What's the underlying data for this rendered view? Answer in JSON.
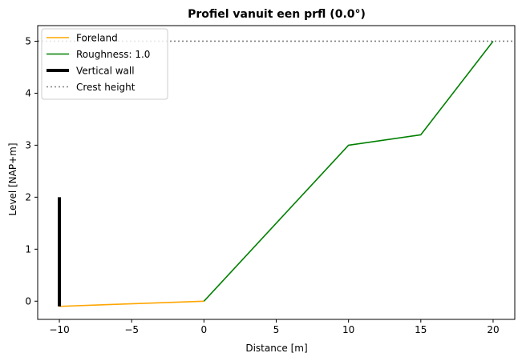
{
  "chart_data": {
    "type": "line",
    "title": "Profiel vanuit een prfl (0.0°)",
    "xlabel": "Distance [m]",
    "ylabel": "Level [NAP+m]",
    "xlim": [
      -11.5,
      21.5
    ],
    "ylim": [
      -0.35,
      5.3
    ],
    "xticks": [
      -10,
      -5,
      0,
      5,
      10,
      15,
      20
    ],
    "yticks": [
      0,
      1,
      2,
      3,
      4,
      5
    ],
    "xtick_labels": [
      "−10",
      "−5",
      "0",
      "5",
      "10",
      "15",
      "20"
    ],
    "ytick_labels": [
      "0",
      "1",
      "2",
      "3",
      "4",
      "5"
    ],
    "grid": false,
    "legend_position": "top-left",
    "series": [
      {
        "name": "Foreland",
        "style": "solid",
        "color": "#FFA500",
        "x": [
          -10,
          0
        ],
        "y": [
          -0.1,
          0.0
        ]
      },
      {
        "name": "Roughness: 1.0",
        "style": "solid",
        "color": "#008000",
        "x": [
          0,
          10,
          15,
          20
        ],
        "y": [
          0.0,
          3.0,
          3.2,
          5.0
        ]
      },
      {
        "name": "Vertical wall",
        "style": "thick",
        "color": "#000000",
        "x": [
          -10,
          -10
        ],
        "y": [
          -0.1,
          2.0
        ]
      },
      {
        "name": "Crest height",
        "style": "dotted",
        "color": "#808080",
        "y_const": 5.0
      }
    ]
  }
}
